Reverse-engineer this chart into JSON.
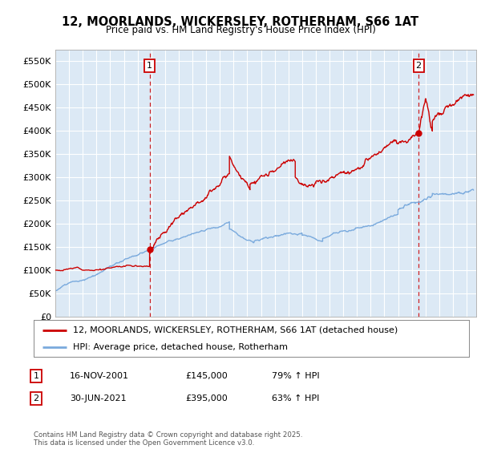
{
  "title_line1": "12, MOORLANDS, WICKERSLEY, ROTHERHAM, S66 1AT",
  "title_line2": "Price paid vs. HM Land Registry's House Price Index (HPI)",
  "ylim": [
    0,
    575000
  ],
  "yticks": [
    0,
    50000,
    100000,
    150000,
    200000,
    250000,
    300000,
    350000,
    400000,
    450000,
    500000,
    550000
  ],
  "ytick_labels": [
    "£0",
    "£50K",
    "£100K",
    "£150K",
    "£200K",
    "£250K",
    "£300K",
    "£350K",
    "£400K",
    "£450K",
    "£500K",
    "£550K"
  ],
  "background_color": "#ffffff",
  "plot_bg_color": "#dce9f5",
  "grid_color": "#ffffff",
  "red_line_color": "#cc0000",
  "blue_line_color": "#7aaadd",
  "marker1_x": 2001.876,
  "marker1_y": 145000,
  "marker2_x": 2021.5,
  "marker2_y": 395000,
  "vline_color": "#cc0000",
  "legend_label_red": "12, MOORLANDS, WICKERSLEY, ROTHERHAM, S66 1AT (detached house)",
  "legend_label_blue": "HPI: Average price, detached house, Rotherham",
  "table_row1": [
    "1",
    "16-NOV-2001",
    "£145,000",
    "79% ↑ HPI"
  ],
  "table_row2": [
    "2",
    "30-JUN-2021",
    "£395,000",
    "63% ↑ HPI"
  ],
  "footer_text": "Contains HM Land Registry data © Crown copyright and database right 2025.\nThis data is licensed under the Open Government Licence v3.0.",
  "xmin": 1995.0,
  "xmax": 2025.7
}
